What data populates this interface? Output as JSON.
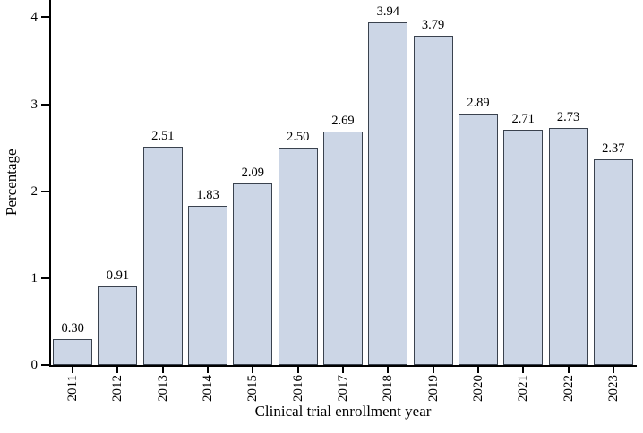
{
  "chart_data": {
    "type": "bar",
    "title": "",
    "xlabel": "Clinical trial enrollment year",
    "ylabel": "Percentage",
    "categories": [
      "2011",
      "2012",
      "2013",
      "2014",
      "2015",
      "2016",
      "2017",
      "2018",
      "2019",
      "2020",
      "2021",
      "2022",
      "2023"
    ],
    "values": [
      0.3,
      0.91,
      2.51,
      1.83,
      2.09,
      2.5,
      2.69,
      3.94,
      3.79,
      2.89,
      2.71,
      2.73,
      2.37
    ],
    "value_labels": [
      "0.30",
      "0.91",
      "2.51",
      "1.83",
      "2.09",
      "2.50",
      "2.69",
      "3.94",
      "3.79",
      "2.89",
      "2.71",
      "2.73",
      "2.37"
    ],
    "yticks": [
      0,
      1,
      2,
      3,
      4
    ],
    "ylim": [
      0,
      4.2
    ],
    "grid": false,
    "legend_position": "none",
    "bar_fill": "#ccd6e6",
    "bar_border": "#3a424e",
    "axis_color": "#000000"
  }
}
